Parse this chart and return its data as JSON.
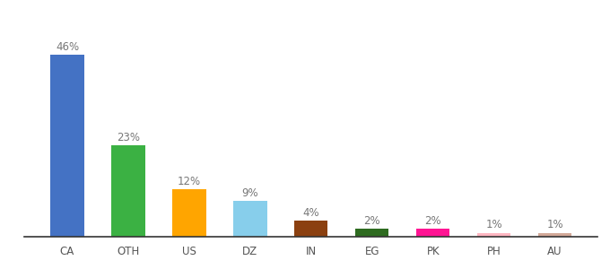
{
  "categories": [
    "CA",
    "OTH",
    "US",
    "DZ",
    "IN",
    "EG",
    "PK",
    "PH",
    "AU"
  ],
  "values": [
    46,
    23,
    12,
    9,
    4,
    2,
    2,
    1,
    1
  ],
  "labels": [
    "46%",
    "23%",
    "12%",
    "9%",
    "4%",
    "2%",
    "2%",
    "1%",
    "1%"
  ],
  "colors": [
    "#4472C4",
    "#3BB143",
    "#FFA500",
    "#87CEEB",
    "#8B4010",
    "#2E6B20",
    "#FF1493",
    "#FFB6C1",
    "#D2A898"
  ],
  "ylim": [
    0,
    55
  ],
  "background_color": "#ffffff",
  "label_fontsize": 8.5,
  "tick_fontsize": 8.5,
  "bar_width": 0.55
}
